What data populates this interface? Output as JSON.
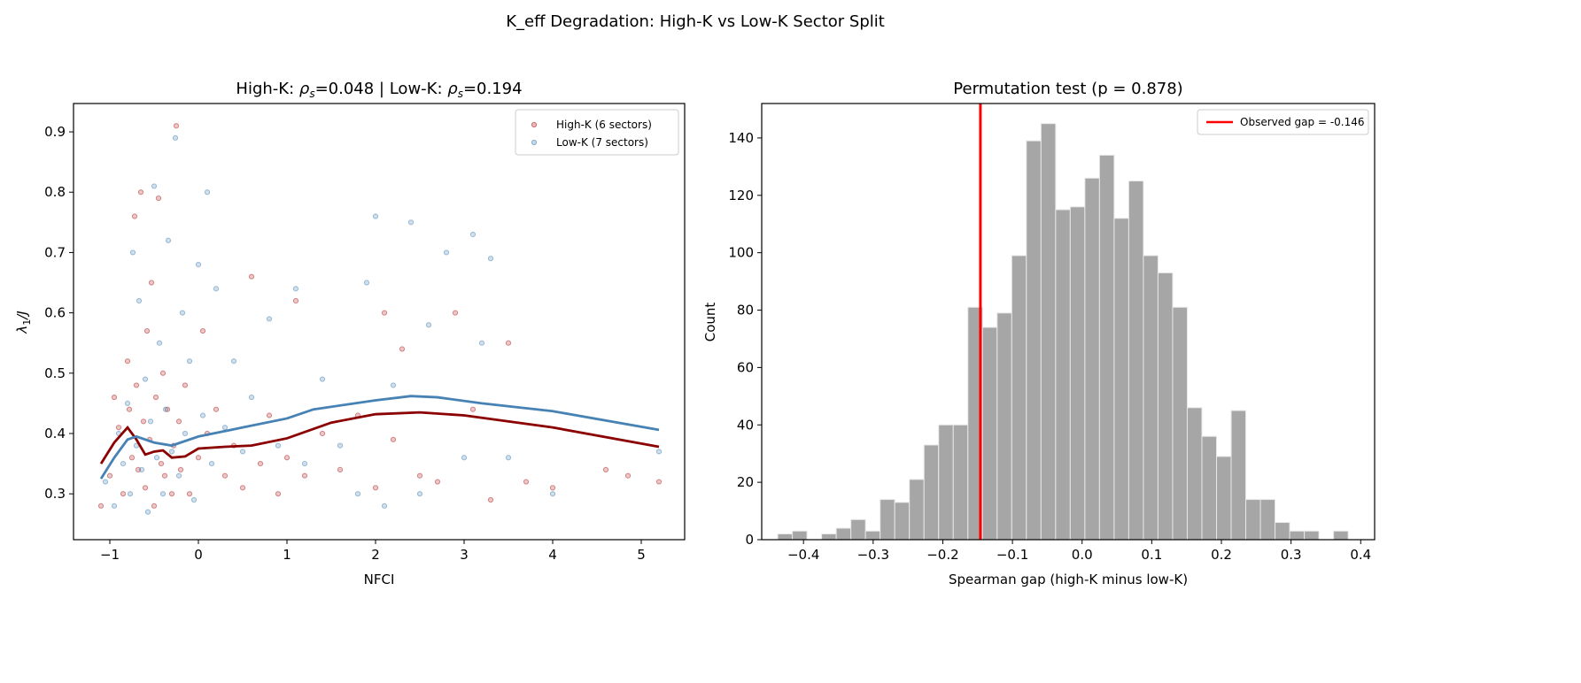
{
  "figure_title": "K_eff Degradation: High-K vs Low-K Sector Split",
  "chart_data": [
    {
      "type": "scatter",
      "title_parts": {
        "a": "High-K: ",
        "rho": "ρ",
        "sub": "s",
        "b": "=0.048  |  Low-K: ",
        "c": "=0.194"
      },
      "xlabel": "NFCI",
      "ylabel_parts": {
        "lambda": "λ",
        "sub": "1",
        "rest": "/J"
      },
      "xlim": [
        -1.41,
        5.49
      ],
      "ylim": [
        0.224,
        0.947
      ],
      "xticks": [
        -1,
        0,
        1,
        2,
        3,
        4,
        5
      ],
      "yticks": [
        0.3,
        0.4,
        0.5,
        0.6,
        0.7,
        0.8,
        0.9
      ],
      "grid": false,
      "legend_position": "top-right",
      "series": [
        {
          "name": "High-K (6 sectors)",
          "color": "#b22222",
          "points": [
            [
              -1.1,
              0.28
            ],
            [
              -1.0,
              0.33
            ],
            [
              -0.95,
              0.46
            ],
            [
              -0.9,
              0.41
            ],
            [
              -0.85,
              0.3
            ],
            [
              -0.8,
              0.52
            ],
            [
              -0.78,
              0.44
            ],
            [
              -0.75,
              0.36
            ],
            [
              -0.72,
              0.76
            ],
            [
              -0.7,
              0.48
            ],
            [
              -0.68,
              0.34
            ],
            [
              -0.65,
              0.8
            ],
            [
              -0.62,
              0.42
            ],
            [
              -0.6,
              0.31
            ],
            [
              -0.58,
              0.57
            ],
            [
              -0.55,
              0.39
            ],
            [
              -0.53,
              0.65
            ],
            [
              -0.5,
              0.28
            ],
            [
              -0.48,
              0.46
            ],
            [
              -0.45,
              0.79
            ],
            [
              -0.42,
              0.35
            ],
            [
              -0.4,
              0.5
            ],
            [
              -0.38,
              0.33
            ],
            [
              -0.35,
              0.44
            ],
            [
              -0.3,
              0.3
            ],
            [
              -0.28,
              0.38
            ],
            [
              -0.25,
              0.91
            ],
            [
              -0.22,
              0.42
            ],
            [
              -0.2,
              0.34
            ],
            [
              -0.15,
              0.48
            ],
            [
              -0.1,
              0.3
            ],
            [
              0.0,
              0.36
            ],
            [
              0.05,
              0.57
            ],
            [
              0.1,
              0.4
            ],
            [
              0.2,
              0.44
            ],
            [
              0.3,
              0.33
            ],
            [
              0.4,
              0.38
            ],
            [
              0.5,
              0.31
            ],
            [
              0.6,
              0.66
            ],
            [
              0.7,
              0.35
            ],
            [
              0.8,
              0.43
            ],
            [
              0.9,
              0.3
            ],
            [
              1.0,
              0.36
            ],
            [
              1.1,
              0.62
            ],
            [
              1.2,
              0.33
            ],
            [
              1.4,
              0.4
            ],
            [
              1.6,
              0.34
            ],
            [
              1.8,
              0.43
            ],
            [
              2.0,
              0.31
            ],
            [
              2.1,
              0.6
            ],
            [
              2.2,
              0.39
            ],
            [
              2.3,
              0.54
            ],
            [
              2.5,
              0.33
            ],
            [
              2.7,
              0.32
            ],
            [
              2.9,
              0.6
            ],
            [
              3.1,
              0.44
            ],
            [
              3.3,
              0.29
            ],
            [
              3.5,
              0.55
            ],
            [
              3.7,
              0.32
            ],
            [
              4.0,
              0.31
            ],
            [
              4.6,
              0.34
            ],
            [
              4.85,
              0.33
            ],
            [
              5.2,
              0.32
            ]
          ]
        },
        {
          "name": "Low-K (7 sectors)",
          "color": "#4682b4",
          "points": [
            [
              -1.05,
              0.32
            ],
            [
              -0.95,
              0.28
            ],
            [
              -0.9,
              0.4
            ],
            [
              -0.85,
              0.35
            ],
            [
              -0.8,
              0.45
            ],
            [
              -0.77,
              0.3
            ],
            [
              -0.74,
              0.7
            ],
            [
              -0.7,
              0.38
            ],
            [
              -0.67,
              0.62
            ],
            [
              -0.64,
              0.34
            ],
            [
              -0.6,
              0.49
            ],
            [
              -0.57,
              0.27
            ],
            [
              -0.54,
              0.42
            ],
            [
              -0.5,
              0.81
            ],
            [
              -0.47,
              0.36
            ],
            [
              -0.44,
              0.55
            ],
            [
              -0.4,
              0.3
            ],
            [
              -0.37,
              0.44
            ],
            [
              -0.34,
              0.72
            ],
            [
              -0.3,
              0.37
            ],
            [
              -0.26,
              0.89
            ],
            [
              -0.22,
              0.33
            ],
            [
              -0.18,
              0.6
            ],
            [
              -0.15,
              0.4
            ],
            [
              -0.1,
              0.52
            ],
            [
              -0.05,
              0.29
            ],
            [
              0.0,
              0.68
            ],
            [
              0.05,
              0.43
            ],
            [
              0.1,
              0.8
            ],
            [
              0.15,
              0.35
            ],
            [
              0.2,
              0.64
            ],
            [
              0.3,
              0.41
            ],
            [
              0.4,
              0.52
            ],
            [
              0.5,
              0.37
            ],
            [
              0.6,
              0.46
            ],
            [
              0.8,
              0.59
            ],
            [
              0.9,
              0.38
            ],
            [
              1.1,
              0.64
            ],
            [
              1.2,
              0.35
            ],
            [
              1.4,
              0.49
            ],
            [
              1.6,
              0.38
            ],
            [
              1.8,
              0.3
            ],
            [
              1.9,
              0.65
            ],
            [
              2.0,
              0.76
            ],
            [
              2.1,
              0.28
            ],
            [
              2.2,
              0.48
            ],
            [
              2.4,
              0.75
            ],
            [
              2.5,
              0.3
            ],
            [
              2.6,
              0.58
            ],
            [
              2.8,
              0.7
            ],
            [
              3.0,
              0.36
            ],
            [
              3.1,
              0.73
            ],
            [
              3.2,
              0.55
            ],
            [
              3.3,
              0.69
            ],
            [
              3.5,
              0.36
            ],
            [
              4.0,
              0.3
            ],
            [
              5.2,
              0.37
            ]
          ]
        }
      ],
      "trend_lines": [
        {
          "series": "High-K (6 sectors)",
          "color": "#8b0000",
          "points": [
            [
              -1.1,
              0.35
            ],
            [
              -0.95,
              0.385
            ],
            [
              -0.8,
              0.41
            ],
            [
              -0.7,
              0.39
            ],
            [
              -0.6,
              0.365
            ],
            [
              -0.5,
              0.37
            ],
            [
              -0.4,
              0.372
            ],
            [
              -0.3,
              0.36
            ],
            [
              -0.15,
              0.362
            ],
            [
              0,
              0.375
            ],
            [
              0.3,
              0.378
            ],
            [
              0.6,
              0.38
            ],
            [
              1,
              0.392
            ],
            [
              1.5,
              0.418
            ],
            [
              2,
              0.432
            ],
            [
              2.5,
              0.435
            ],
            [
              3,
              0.43
            ],
            [
              4,
              0.41
            ],
            [
              5.2,
              0.378
            ]
          ]
        },
        {
          "series": "Low-K (7 sectors)",
          "color": "#4682b4",
          "points": [
            [
              -1.1,
              0.325
            ],
            [
              -0.95,
              0.36
            ],
            [
              -0.8,
              0.39
            ],
            [
              -0.7,
              0.395
            ],
            [
              -0.5,
              0.385
            ],
            [
              -0.3,
              0.38
            ],
            [
              0,
              0.395
            ],
            [
              0.5,
              0.41
            ],
            [
              1,
              0.425
            ],
            [
              1.3,
              0.44
            ],
            [
              2,
              0.455
            ],
            [
              2.4,
              0.462
            ],
            [
              2.7,
              0.46
            ],
            [
              3.2,
              0.45
            ],
            [
              4,
              0.437
            ],
            [
              5.2,
              0.406
            ]
          ]
        }
      ]
    },
    {
      "type": "bar",
      "title": "Permutation test (p = 0.878)",
      "xlabel": "Spearman gap (high-K minus low-K)",
      "ylabel": "Count",
      "xlim": [
        -0.46,
        0.42
      ],
      "ylim": [
        0,
        152
      ],
      "xticks": [
        -0.4,
        -0.3,
        -0.2,
        -0.1,
        0.0,
        0.1,
        0.2,
        0.3,
        0.4
      ],
      "xtick_labels": [
        "−0.4",
        "−0.3",
        "−0.2",
        "−0.1",
        "0.0",
        "0.1",
        "0.2",
        "0.3",
        "0.4"
      ],
      "yticks": [
        0,
        20,
        40,
        60,
        80,
        100,
        120,
        140
      ],
      "bin_start": -0.437,
      "bin_width": 0.021,
      "values": [
        2,
        3,
        0,
        2,
        4,
        7,
        3,
        14,
        13,
        21,
        33,
        40,
        40,
        81,
        74,
        79,
        99,
        139,
        145,
        115,
        116,
        126,
        134,
        112,
        125,
        99,
        93,
        81,
        46,
        36,
        29,
        45,
        14,
        14,
        6,
        3,
        3,
        0,
        3
      ],
      "bar_color": "#a6a6a6",
      "observed": {
        "value": -0.146,
        "label": "Observed gap = -0.146",
        "color": "#ff0000"
      },
      "grid": false,
      "legend_position": "top-right"
    }
  ]
}
